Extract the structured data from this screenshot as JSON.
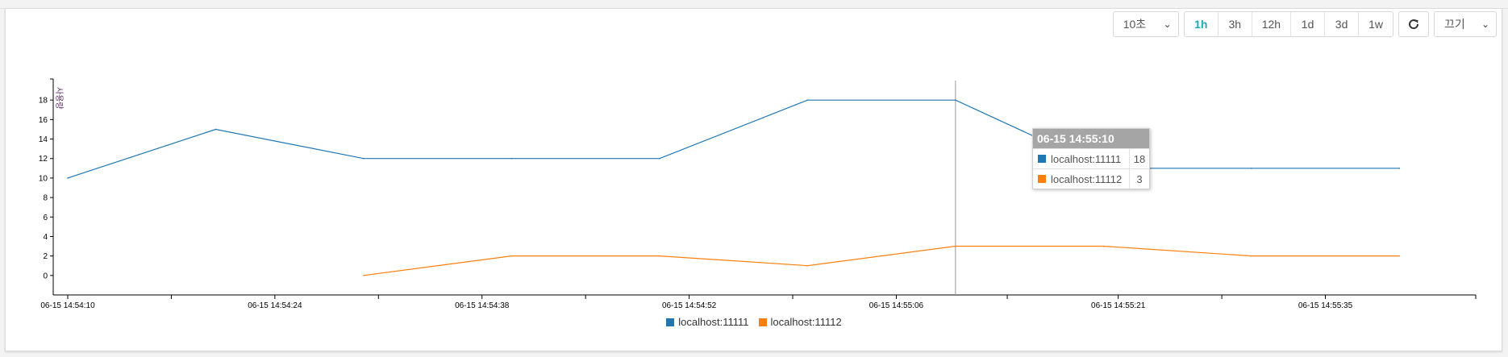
{
  "controls": {
    "interval_select": "10초",
    "range_buttons": [
      "1h",
      "3h",
      "12h",
      "1d",
      "3d",
      "1w"
    ],
    "active_range": "1h",
    "refresh_icon": "refresh-icon",
    "mode_select": "끄기"
  },
  "colors": {
    "series1": "#1f77b4",
    "series2": "#ff7f0e",
    "accent": "#1ba8b8"
  },
  "tooltip": {
    "time": "06-15 14:55:10",
    "rows": [
      {
        "name": "localhost:11111",
        "value": "18"
      },
      {
        "name": "localhost:11112",
        "value": "3"
      }
    ]
  },
  "chart_data": {
    "type": "line",
    "ylabel": "사용량",
    "ylim": [
      -2,
      20
    ],
    "yticks": [
      0,
      2,
      4,
      6,
      8,
      10,
      12,
      14,
      16,
      18
    ],
    "xlim": [
      "06-15 14:54:10",
      "06-15 14:55:45"
    ],
    "xtick_labels": [
      "06-15 14:54:10",
      "06-15 14:54:24",
      "06-15 14:54:38",
      "06-15 14:54:52",
      "06-15 14:55:06",
      "06-15 14:55:21",
      "06-15 14:55:35"
    ],
    "hover_time": "06-15 14:55:10",
    "grid": false,
    "legend_position": "bottom-center",
    "series": [
      {
        "name": "localhost:11111",
        "x": [
          "06-15 14:54:10",
          "06-15 14:54:20",
          "06-15 14:54:30",
          "06-15 14:54:40",
          "06-15 14:54:50",
          "06-15 14:55:00",
          "06-15 14:55:10",
          "06-15 14:55:20",
          "06-15 14:55:30",
          "06-15 14:55:40"
        ],
        "values": [
          10,
          15,
          12,
          12,
          12,
          18,
          18,
          11,
          11,
          11
        ]
      },
      {
        "name": "localhost:11112",
        "x": [
          "06-15 14:54:30",
          "06-15 14:54:40",
          "06-15 14:54:50",
          "06-15 14:55:00",
          "06-15 14:55:10",
          "06-15 14:55:20",
          "06-15 14:55:30",
          "06-15 14:55:40"
        ],
        "values": [
          0,
          2,
          2,
          1,
          3,
          3,
          2,
          2
        ]
      }
    ]
  }
}
